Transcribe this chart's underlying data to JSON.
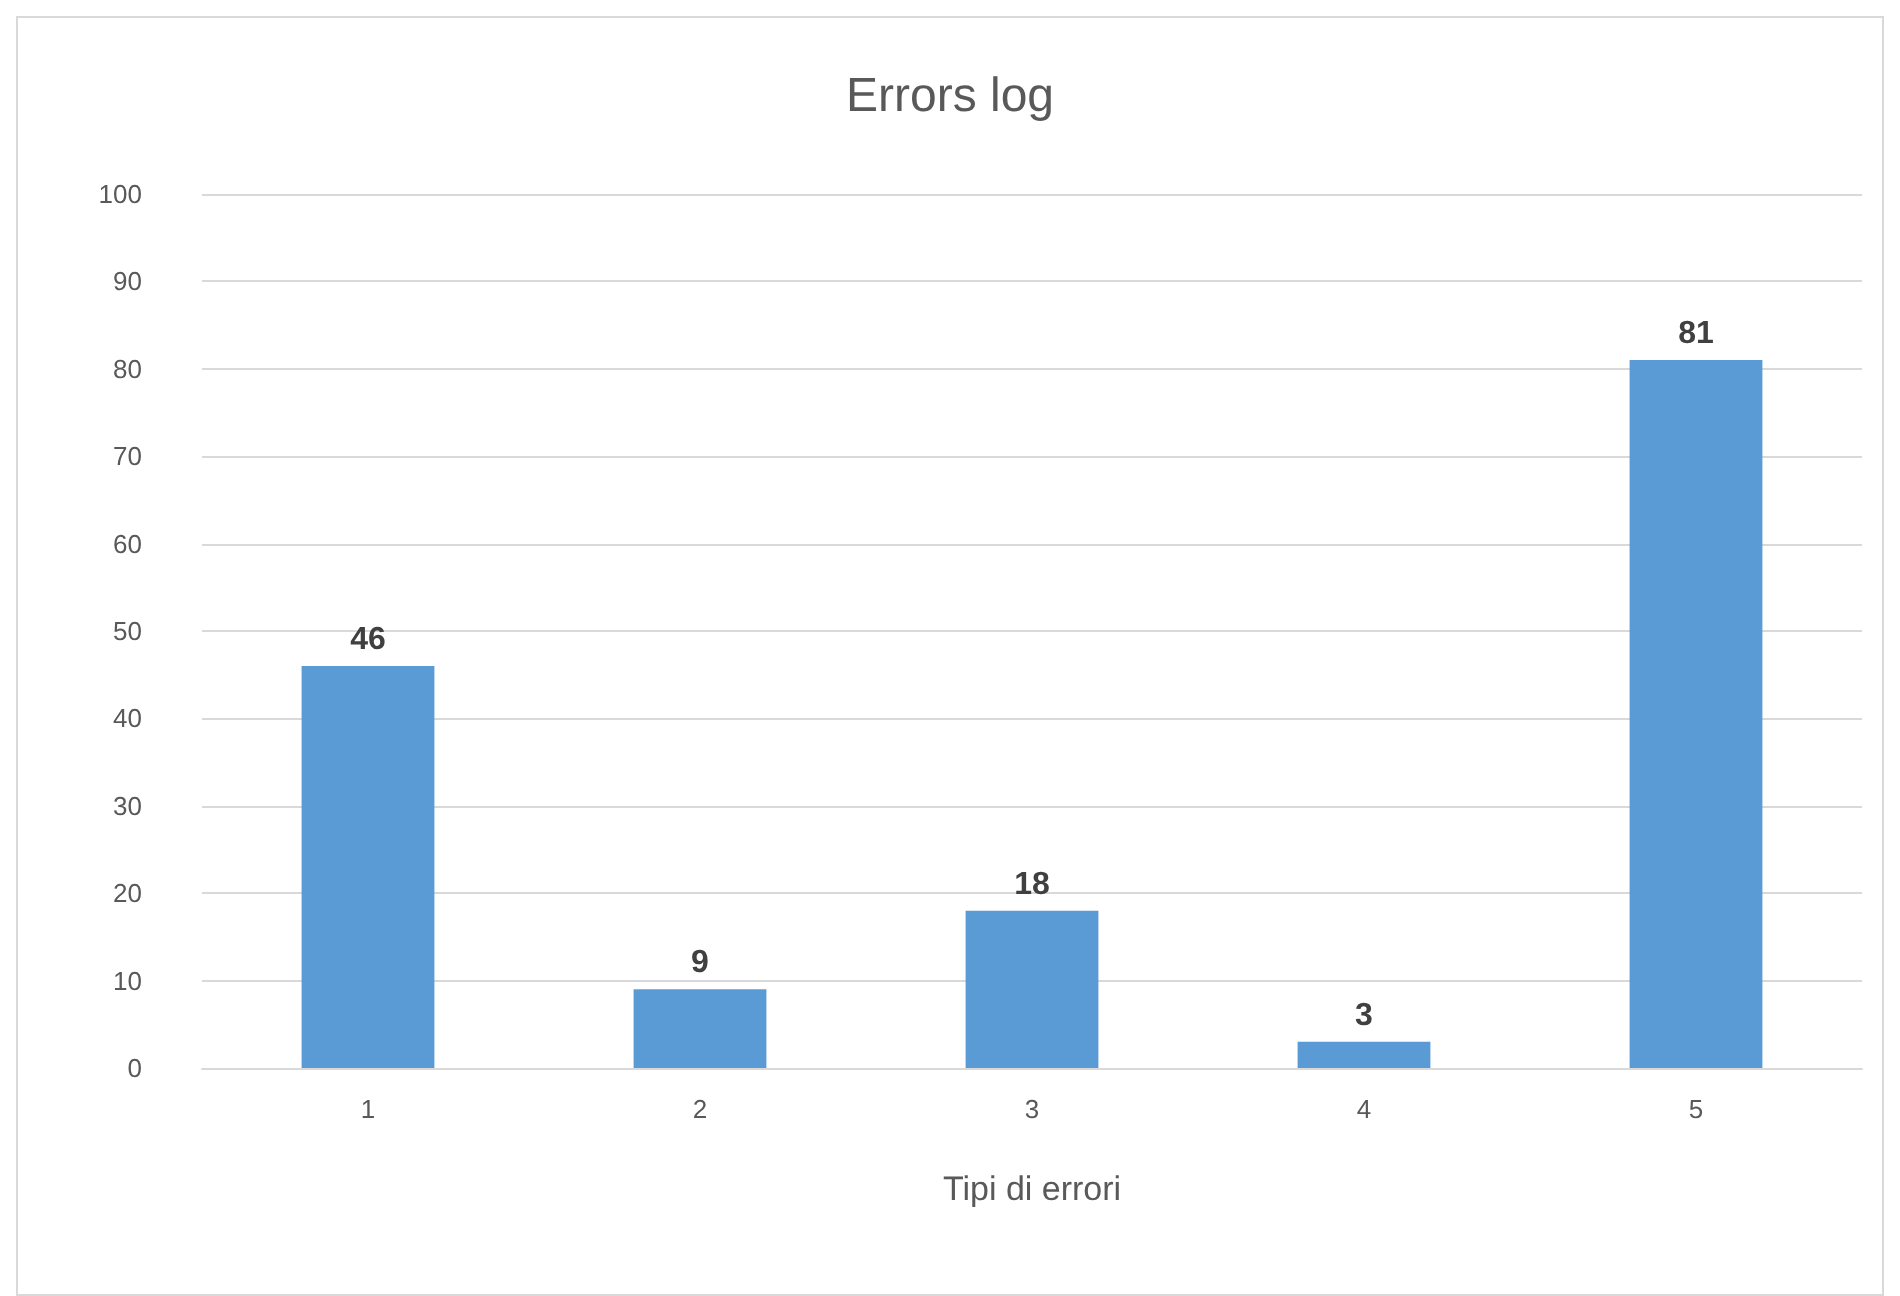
{
  "chart_data": {
    "type": "bar",
    "title": "Errors log",
    "xlabel": "Tipi di errori",
    "categories": [
      "1",
      "2",
      "3",
      "4",
      "5"
    ],
    "values": [
      46,
      9,
      18,
      3,
      81
    ],
    "color": "#5b9bd5",
    "ylim": [
      0,
      100
    ],
    "yticks": [
      0,
      10,
      20,
      30,
      40,
      50,
      60,
      70,
      80,
      90,
      100
    ],
    "grid": "y",
    "data_labels": true
  }
}
